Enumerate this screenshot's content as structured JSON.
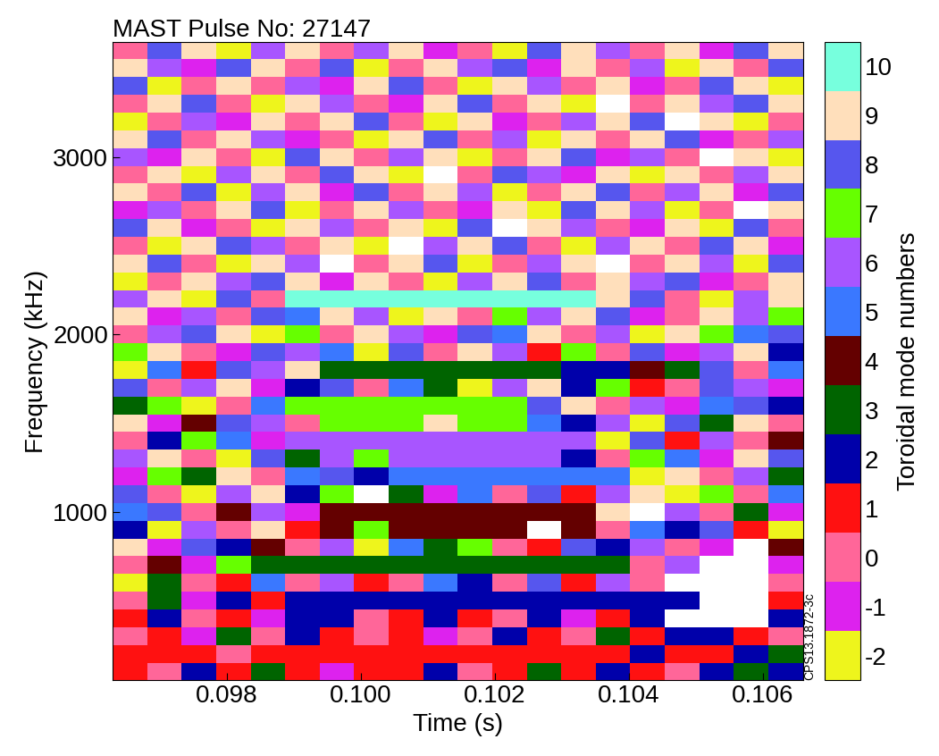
{
  "chart_data": {
    "type": "heatmap",
    "title": "MAST Pulse No: 27147",
    "x_label": "Time (s)",
    "y_label": "Frequency (kHz)",
    "colorbar_label": "Toroidal mode numbers",
    "annotation": "CPS13.1872-3c",
    "xlim": [
      0.0963,
      0.1066
    ],
    "ylim": [
      50,
      3650
    ],
    "xticks": [
      0.098,
      {
        "value": 0.1,
        "label": "0.100"
      },
      0.102,
      0.104,
      0.106
    ],
    "yticks": [
      1000,
      2000,
      3000
    ],
    "clim": [
      -2.5,
      10.5
    ],
    "cticks": [
      -2,
      -1,
      0,
      1,
      2,
      3,
      4,
      5,
      6,
      7,
      8,
      9,
      10
    ],
    "colors": [
      "#eef51c",
      "#dd22ee",
      "#ff6699",
      "#ff1111",
      "#0000aa",
      "#006400",
      "#640000",
      "#3a78ff",
      "#a855ff",
      "#66ff00",
      "#5656ee",
      "#ffdfbb",
      "#77ffdd"
    ],
    "cells": [
      [
        1,
        0,
        2,
        1,
        3,
        1,
        -1,
        1,
        1,
        2,
        0,
        1,
        3,
        1,
        2,
        1,
        0,
        2,
        3,
        2
      ],
      [
        1,
        1,
        1,
        0,
        1,
        1,
        1,
        1,
        1,
        1,
        1,
        1,
        1,
        1,
        1,
        2,
        1,
        1,
        2,
        3
      ],
      [
        0,
        1,
        -1,
        3,
        0,
        2,
        1,
        0,
        1,
        -1,
        0,
        2,
        1,
        0,
        3,
        1,
        2,
        2,
        1,
        0
      ],
      [
        1,
        2,
        0,
        1,
        -1,
        2,
        2,
        0,
        1,
        2,
        1,
        0,
        2,
        -1,
        1,
        2,
        null,
        null,
        null,
        2
      ],
      [
        0,
        3,
        -1,
        2,
        1,
        2,
        2,
        2,
        2,
        2,
        2,
        2,
        2,
        2,
        2,
        2,
        2,
        null,
        null,
        1
      ],
      [
        -2,
        3,
        0,
        1,
        5,
        0,
        6,
        1,
        0,
        5,
        2,
        0,
        8,
        1,
        6,
        0,
        null,
        null,
        null,
        0
      ],
      [
        0,
        4,
        -1,
        7,
        3,
        3,
        3,
        3,
        3,
        3,
        3,
        3,
        3,
        3,
        3,
        0,
        6,
        null,
        null,
        -1
      ],
      [
        9,
        -1,
        8,
        2,
        4,
        0,
        6,
        -2,
        5,
        3,
        7,
        0,
        1,
        8,
        2,
        6,
        0,
        -1,
        null,
        4
      ],
      [
        2,
        -2,
        6,
        0,
        9,
        1,
        4,
        7,
        4,
        4,
        4,
        4,
        null,
        4,
        0,
        5,
        2,
        8,
        1,
        -2
      ],
      [
        5,
        8,
        0,
        4,
        6,
        -1,
        4,
        4,
        4,
        4,
        4,
        4,
        4,
        4,
        9,
        null,
        6,
        0,
        3,
        -1
      ],
      [
        8,
        0,
        -2,
        6,
        9,
        2,
        7,
        null,
        3,
        -1,
        5,
        0,
        8,
        1,
        6,
        9,
        -2,
        7,
        0,
        5
      ],
      [
        -1,
        7,
        3,
        9,
        0,
        5,
        8,
        2,
        5,
        5,
        5,
        5,
        5,
        5,
        5,
        -2,
        9,
        0,
        6,
        3
      ],
      [
        6,
        9,
        0,
        -2,
        8,
        3,
        6,
        7,
        6,
        6,
        6,
        6,
        6,
        2,
        0,
        7,
        5,
        -1,
        9,
        8
      ],
      [
        0,
        2,
        7,
        5,
        -1,
        6,
        6,
        6,
        6,
        6,
        6,
        6,
        6,
        6,
        -2,
        8,
        1,
        6,
        0,
        4
      ],
      [
        9,
        -1,
        4,
        8,
        6,
        0,
        7,
        7,
        7,
        9,
        7,
        7,
        5,
        2,
        6,
        -2,
        8,
        3,
        9,
        0
      ],
      [
        3,
        7,
        -2,
        0,
        5,
        7,
        7,
        7,
        7,
        7,
        7,
        7,
        8,
        9,
        0,
        6,
        -1,
        5,
        8,
        2
      ],
      [
        8,
        0,
        6,
        9,
        -1,
        2,
        8,
        0,
        5,
        3,
        -2,
        6,
        9,
        2,
        7,
        1,
        0,
        8,
        6,
        -1
      ],
      [
        -2,
        5,
        1,
        8,
        6,
        9,
        3,
        3,
        3,
        3,
        3,
        3,
        3,
        2,
        2,
        4,
        3,
        8,
        0,
        5
      ],
      [
        7,
        9,
        0,
        -1,
        8,
        6,
        5,
        -2,
        8,
        0,
        9,
        6,
        1,
        7,
        0,
        8,
        -1,
        6,
        9,
        2
      ],
      [
        0,
        6,
        8,
        9,
        -2,
        7,
        0,
        9,
        6,
        -1,
        8,
        5,
        9,
        0,
        6,
        -2,
        9,
        7,
        5,
        8
      ],
      [
        9,
        -1,
        6,
        0,
        8,
        5,
        9,
        6,
        -2,
        9,
        0,
        7,
        6,
        9,
        8,
        -1,
        0,
        9,
        6,
        7
      ],
      [
        6,
        9,
        -2,
        8,
        0,
        10,
        10,
        10,
        10,
        10,
        10,
        10,
        10,
        10,
        9,
        8,
        0,
        -2,
        6,
        9
      ],
      [
        -2,
        0,
        9,
        6,
        8,
        9,
        -1,
        9,
        0,
        -2,
        6,
        9,
        8,
        0,
        9,
        6,
        8,
        -1,
        0,
        9
      ],
      [
        9,
        8,
        0,
        -2,
        9,
        6,
        null,
        0,
        9,
        8,
        -2,
        0,
        6,
        9,
        null,
        0,
        9,
        6,
        -2,
        8
      ],
      [
        0,
        -2,
        9,
        8,
        6,
        0,
        9,
        -2,
        null,
        6,
        9,
        8,
        0,
        -2,
        6,
        9,
        0,
        8,
        9,
        -1
      ],
      [
        8,
        9,
        -1,
        0,
        -2,
        9,
        6,
        0,
        9,
        -2,
        8,
        null,
        9,
        6,
        0,
        -1,
        9,
        -2,
        8,
        0
      ],
      [
        -1,
        6,
        0,
        9,
        8,
        -2,
        0,
        9,
        6,
        0,
        -1,
        9,
        -2,
        8,
        9,
        6,
        -2,
        0,
        null,
        9
      ],
      [
        9,
        0,
        8,
        -2,
        6,
        9,
        -1,
        8,
        0,
        9,
        6,
        -2,
        0,
        9,
        8,
        0,
        6,
        9,
        -1,
        8
      ],
      [
        0,
        9,
        -2,
        6,
        9,
        0,
        8,
        9,
        -2,
        null,
        0,
        8,
        6,
        -1,
        9,
        -2,
        9,
        0,
        6,
        9
      ],
      [
        6,
        -1,
        9,
        0,
        -2,
        8,
        9,
        0,
        6,
        9,
        -2,
        0,
        9,
        8,
        -1,
        6,
        0,
        null,
        9,
        -2
      ],
      [
        9,
        8,
        0,
        9,
        6,
        -1,
        0,
        -2,
        9,
        8,
        0,
        6,
        -2,
        9,
        0,
        9,
        8,
        -1,
        0,
        6
      ],
      [
        -2,
        0,
        6,
        -1,
        9,
        0,
        9,
        8,
        0,
        -2,
        9,
        -1,
        0,
        6,
        9,
        8,
        null,
        9,
        -2,
        0
      ],
      [
        0,
        9,
        8,
        0,
        -2,
        9,
        6,
        0,
        -1,
        9,
        8,
        0,
        9,
        -2,
        null,
        0,
        9,
        6,
        8,
        9
      ],
      [
        8,
        -2,
        0,
        9,
        0,
        6,
        -1,
        9,
        8,
        0,
        -2,
        9,
        6,
        0,
        9,
        -1,
        0,
        8,
        9,
        -2
      ],
      [
        9,
        6,
        -1,
        8,
        9,
        0,
        8,
        -2,
        0,
        9,
        6,
        8,
        -1,
        9,
        0,
        6,
        -2,
        9,
        0,
        8
      ],
      [
        0,
        8,
        9,
        -2,
        6,
        9,
        0,
        6,
        9,
        -1,
        0,
        -2,
        8,
        9,
        6,
        0,
        9,
        -1,
        8,
        9
      ]
    ]
  }
}
